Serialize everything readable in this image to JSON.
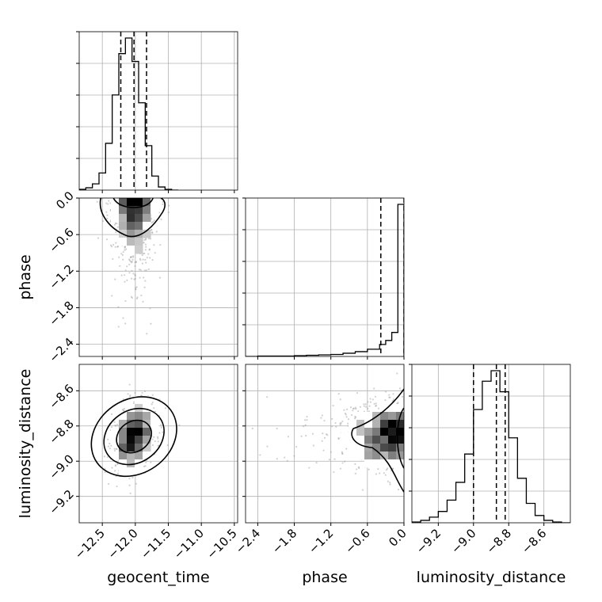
{
  "chart_data": {
    "type": "corner",
    "parameters": [
      "geocent_time",
      "phase",
      "luminosity_distance"
    ],
    "ranges": {
      "geocent_time": [
        -12.85,
        -10.45
      ],
      "phase": [
        -2.6,
        0.0
      ],
      "luminosity_distance": [
        -9.35,
        -8.45
      ]
    },
    "ticks": {
      "geocent_time": [
        -12.5,
        -12.0,
        -11.5,
        -11.0,
        -10.5
      ],
      "phase": [
        -2.4,
        -1.8,
        -1.2,
        -0.6,
        0.0
      ],
      "luminosity_distance": [
        -9.2,
        -9.0,
        -8.8,
        -8.6
      ]
    },
    "tick_labels": {
      "geocent_time": [
        "−12.5",
        "−12.0",
        "−11.5",
        "−11.0",
        "−10.5"
      ],
      "phase": [
        "−2.4",
        "−1.8",
        "−1.2",
        "−0.6",
        "0.0"
      ],
      "luminosity_distance": [
        "−9.2",
        "−9.0",
        "−8.8",
        "−8.6"
      ]
    },
    "axis_labels": {
      "x": [
        "geocent_time",
        "phase",
        "luminosity_distance"
      ],
      "y": [
        "phase",
        "luminosity_distance"
      ]
    },
    "quantiles": {
      "geocent_time": [
        -12.22,
        -12.02,
        -11.83
      ],
      "phase": [
        -0.38,
        0.0
      ],
      "luminosity_distance": [
        -9.0,
        -8.87,
        -8.82
      ]
    },
    "histograms": {
      "geocent_time": {
        "edges": [
          -12.85,
          -12.75,
          -12.65,
          -12.55,
          -12.45,
          -12.35,
          -12.25,
          -12.15,
          -12.05,
          -11.95,
          -11.85,
          -11.75,
          -11.65,
          -11.55,
          -11.45,
          -11.35
        ],
        "counts": [
          1,
          3,
          8,
          22,
          60,
          122,
          175,
          195,
          165,
          112,
          57,
          18,
          4,
          1,
          0
        ]
      },
      "phase": {
        "edges": [
          -2.6,
          -2.4,
          -2.2,
          -2.0,
          -1.8,
          -1.6,
          -1.4,
          -1.2,
          -1.0,
          -0.8,
          -0.6,
          -0.4,
          -0.3,
          -0.2,
          -0.1,
          0.0
        ],
        "counts": [
          0,
          1,
          1,
          1,
          2,
          3,
          4,
          5,
          8,
          12,
          18,
          30,
          40,
          60,
          380
        ]
      },
      "luminosity_distance": {
        "edges": [
          -9.35,
          -9.3,
          -9.25,
          -9.2,
          -9.15,
          -9.1,
          -9.05,
          -9.0,
          -8.95,
          -8.9,
          -8.85,
          -8.8,
          -8.75,
          -8.7,
          -8.65,
          -8.6,
          -8.55,
          -8.5,
          -8.45
        ],
        "counts": [
          1,
          3,
          7,
          14,
          28,
          50,
          85,
          140,
          175,
          188,
          162,
          105,
          55,
          24,
          9,
          3,
          1,
          0
        ]
      }
    },
    "grid": true,
    "colors": {
      "line": "#000000",
      "scatter": "#999999",
      "grid": "#b0b0b0"
    }
  }
}
